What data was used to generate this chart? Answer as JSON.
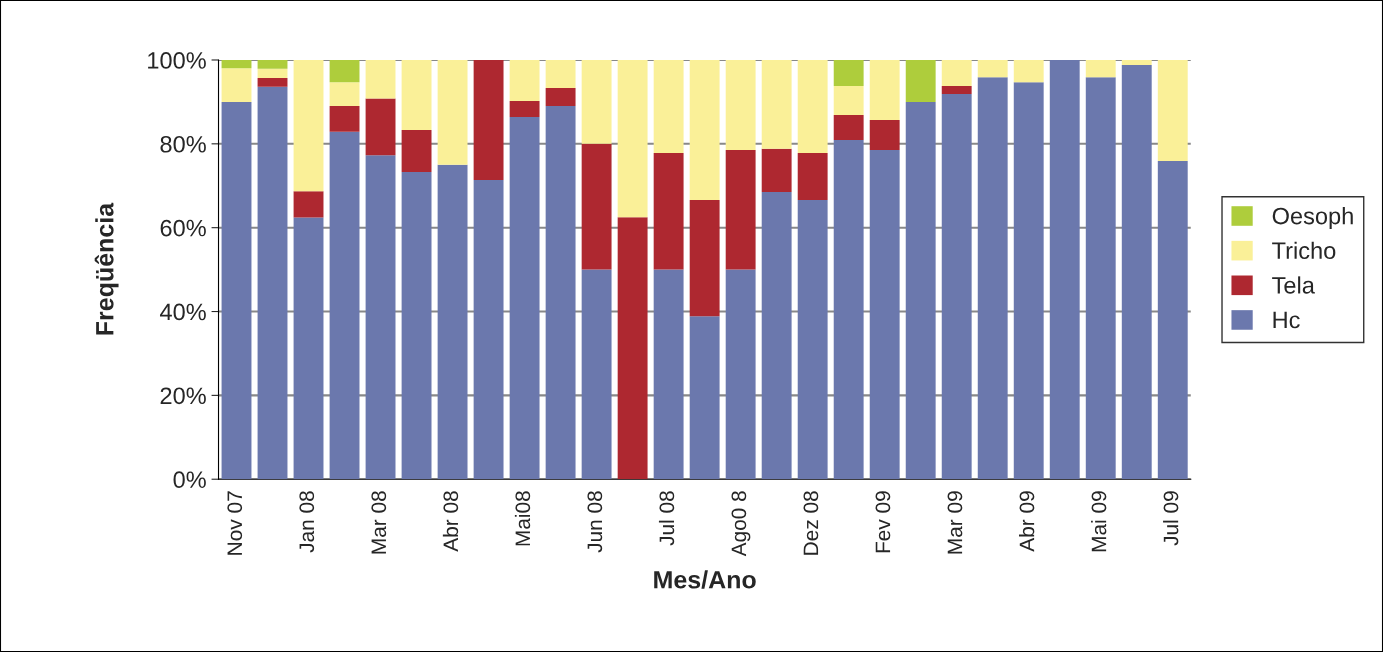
{
  "chart_data": {
    "type": "bar",
    "stacked": true,
    "xlabel": "Mes/Ano",
    "ylabel": "Freqüência",
    "categories": [
      "Nov 07",
      null,
      "Jan 08",
      null,
      "Mar 08",
      null,
      "Abr 08",
      null,
      "Mai08",
      null,
      "Jun 08",
      null,
      "Jul 08",
      null,
      "Ago0 8",
      null,
      "Dez 08",
      null,
      "Fev 09",
      null,
      "Mar 09",
      null,
      "Abr 09",
      null,
      "Mai 09",
      null,
      "Jul 09"
    ],
    "series": [
      {
        "name": "Hc",
        "color": "#6b78ad",
        "values": [
          90,
          93.6,
          62.4,
          82.9,
          77.3,
          73.3,
          75,
          71.4,
          86.4,
          89,
          50,
          0,
          50,
          38.9,
          50,
          68.5,
          66.6,
          80.9,
          78.5,
          90,
          91.9,
          95.9,
          94.7,
          100,
          95.9,
          98.8,
          75.9
        ]
      },
      {
        "name": "Tela",
        "color": "#ae2830",
        "values": [
          0,
          2.1,
          6.3,
          6.1,
          13.5,
          10,
          0,
          28.6,
          3.8,
          4.3,
          30,
          62.5,
          27.8,
          27.7,
          28.5,
          10.3,
          11.2,
          6,
          7.2,
          0,
          1.9,
          0,
          0,
          0,
          0,
          0,
          0
        ]
      },
      {
        "name": "Tricho",
        "color": "#faf098",
        "values": [
          8,
          2.2,
          31.3,
          5.7,
          9.2,
          16.7,
          25,
          0,
          9.8,
          6.7,
          20,
          37.5,
          22.2,
          33.4,
          21.5,
          21.2,
          22.2,
          6.9,
          14.3,
          0,
          6.2,
          4.1,
          5.3,
          0,
          4.1,
          1.2,
          24.1
        ]
      },
      {
        "name": "Oesoph",
        "color": "#aecd3c",
        "values": [
          2,
          2.1,
          0,
          5.3,
          0,
          0,
          0,
          0,
          0,
          0,
          0,
          0,
          0,
          0,
          0,
          0,
          0,
          6.2,
          0,
          10,
          0,
          0,
          0,
          0,
          0,
          0,
          0
        ]
      }
    ],
    "ylim": [
      0,
      100
    ],
    "yticks": [
      {
        "value": 0,
        "label": "0%"
      },
      {
        "value": 20,
        "label": "20%"
      },
      {
        "value": 40,
        "label": "40%"
      },
      {
        "value": 60,
        "label": "60%"
      },
      {
        "value": 80,
        "label": "80%"
      },
      {
        "value": 100,
        "label": "100%"
      }
    ],
    "grid": "y",
    "legend": "right"
  }
}
